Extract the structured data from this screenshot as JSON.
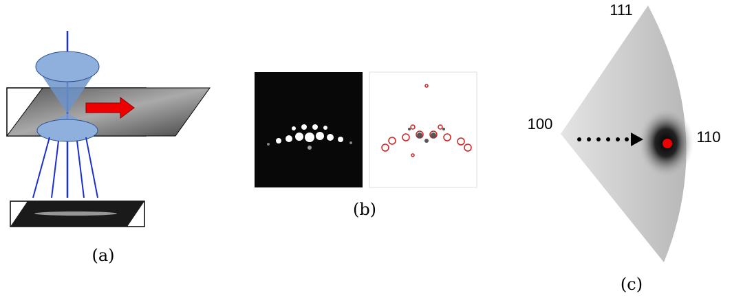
{
  "panels": [
    {
      "label": "(a)"
    },
    {
      "label": "(b)"
    },
    {
      "label": "(c)",
      "directions": [
        "111",
        "100",
        "110"
      ]
    }
  ]
}
